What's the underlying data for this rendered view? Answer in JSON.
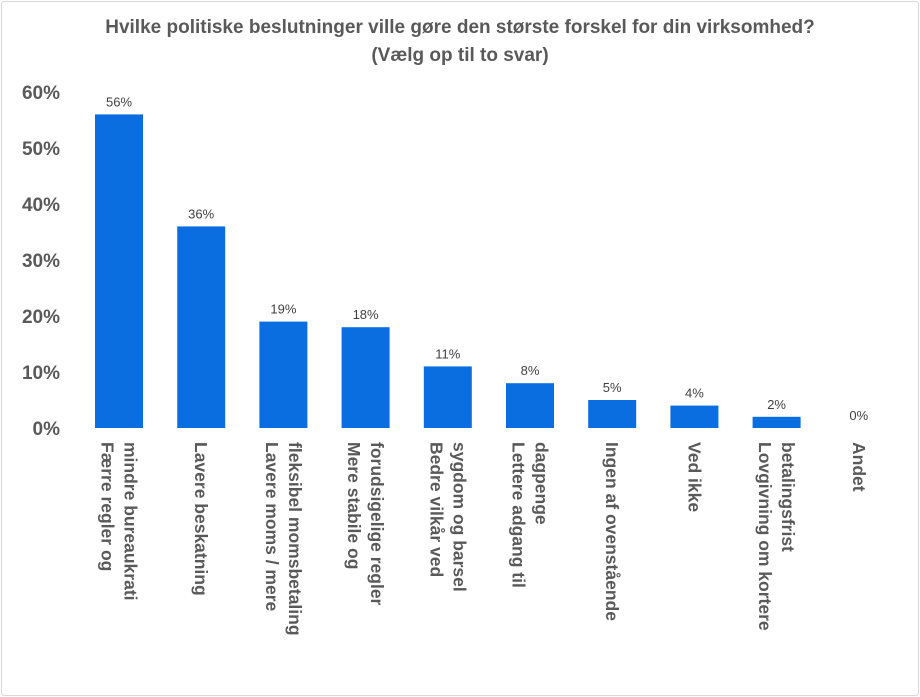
{
  "chart_data": {
    "type": "bar",
    "title": "Hvilke politiske beslutninger ville gøre den største forskel for din virksomhed? (Vælg op til to svar)",
    "categories": [
      [
        "Færre regler og",
        "mindre bureaukrati"
      ],
      [
        "Lavere beskatning"
      ],
      [
        "Lavere moms / mere",
        "fleksibel momsbetaling"
      ],
      [
        "Mere stabile og",
        "forudsigelige regler"
      ],
      [
        "Bedre vilkår ved",
        "sygdom og barsel"
      ],
      [
        "Lettere adgang til",
        "dagpenge"
      ],
      [
        "Ingen af ovenstående"
      ],
      [
        "Ved ikke"
      ],
      [
        "Lovgivning om kortere",
        "betalingsfrist"
      ],
      [
        "Andet"
      ]
    ],
    "values": [
      56,
      36,
      19,
      18,
      11,
      8,
      5,
      4,
      2,
      0
    ],
    "value_labels": [
      "56%",
      "36%",
      "19%",
      "18%",
      "11%",
      "8%",
      "5%",
      "4%",
      "2%",
      "0%"
    ],
    "yticks": [
      "0%",
      "10%",
      "20%",
      "30%",
      "40%",
      "50%",
      "60%"
    ],
    "ylim": [
      0,
      60
    ],
    "grid": false,
    "bar_color": "#0a6ee0"
  }
}
